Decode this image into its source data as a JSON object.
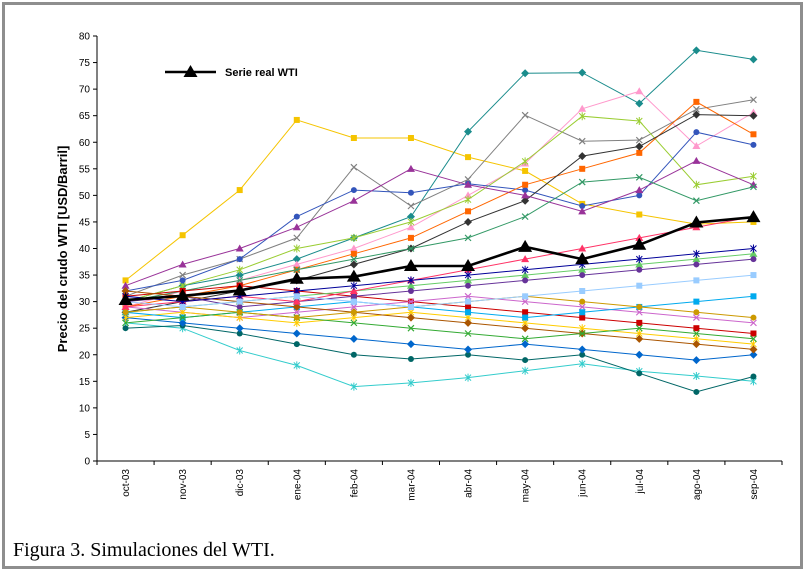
{
  "chart_data": {
    "type": "line",
    "title": "",
    "xlabel": "",
    "ylabel": "Precio del crudo WTI [USD/Barril]",
    "categories": [
      "oct-03",
      "nov-03",
      "dic-03",
      "ene-04",
      "feb-04",
      "mar-04",
      "abr-04",
      "may-04",
      "jun-04",
      "jul-04",
      "ago-04",
      "sep-04"
    ],
    "ylim": [
      0,
      80
    ],
    "yticks": [
      0,
      5,
      10,
      15,
      20,
      25,
      30,
      35,
      40,
      45,
      50,
      55,
      60,
      65,
      70,
      75,
      80
    ],
    "grid": false,
    "legend": "top-left",
    "series": [
      {
        "name": "Serie real WTI",
        "color": "#000000",
        "values": [
          30.3,
          31.1,
          32.1,
          34.3,
          34.7,
          36.7,
          36.7,
          40.3,
          38.0,
          40.7,
          44.9,
          45.9
        ]
      }
    ],
    "simulations": [
      {
        "color": "#f5c400",
        "values": [
          34.0,
          42.5,
          51.0,
          64.2,
          60.8,
          60.8,
          57.2,
          54.6,
          48.4,
          46.4,
          44.6,
          45.0
        ]
      },
      {
        "color": "#1a8c8c",
        "values": [
          30.0,
          33.0,
          35.0,
          38.0,
          42.0,
          46.0,
          62.0,
          73.0,
          73.1,
          67.3,
          77.3,
          75.6
        ]
      },
      {
        "color": "#ff99cc",
        "values": [
          29.0,
          32.0,
          34.0,
          37.0,
          40.0,
          44.0,
          50.0,
          56.0,
          66.3,
          69.6,
          59.3,
          65.6
        ]
      },
      {
        "color": "#808080",
        "values": [
          31.0,
          35.0,
          38.0,
          42.0,
          55.3,
          48.0,
          53.0,
          65.1,
          60.2,
          60.4,
          66.2,
          68.0
        ]
      },
      {
        "color": "#9acd32",
        "values": [
          30.0,
          33.0,
          36.0,
          40.0,
          42.0,
          45.0,
          49.2,
          56.4,
          64.9,
          64.0,
          52.0,
          53.6
        ]
      },
      {
        "color": "#3355bb",
        "values": [
          32.0,
          34.0,
          38.0,
          46.0,
          51.0,
          50.5,
          52.2,
          51.0,
          48.0,
          50.0,
          61.9,
          59.5
        ]
      },
      {
        "color": "#ff6600",
        "values": [
          29.0,
          31.0,
          33.0,
          36.0,
          39.0,
          42.0,
          47.0,
          52.0,
          55.0,
          58.0,
          67.6,
          61.5
        ]
      },
      {
        "color": "#333333",
        "values": [
          28.0,
          30.0,
          32.0,
          34.0,
          37.0,
          40.0,
          45.0,
          49.0,
          57.4,
          59.2,
          65.2,
          65.0
        ]
      },
      {
        "color": "#993399",
        "values": [
          33.0,
          37.0,
          40.0,
          44.0,
          49.0,
          55.0,
          52.0,
          50.0,
          47.0,
          51.0,
          56.5,
          52.0
        ]
      },
      {
        "color": "#339966",
        "values": [
          30.0,
          32.0,
          34.0,
          36.0,
          38.0,
          40.0,
          42.0,
          46.0,
          52.5,
          53.4,
          49.0,
          51.6
        ]
      },
      {
        "color": "#33cccc",
        "values": [
          26.0,
          25.0,
          20.8,
          18.0,
          14.0,
          14.7,
          15.7,
          17.0,
          18.3,
          16.9,
          16.0,
          15.0
        ]
      },
      {
        "color": "#006666",
        "values": [
          25.0,
          25.5,
          24.0,
          22.0,
          20.0,
          19.2,
          20.0,
          19.0,
          20.0,
          16.5,
          13.0,
          15.9
        ]
      },
      {
        "color": "#cc0000",
        "values": [
          31.0,
          32.0,
          33.0,
          32.0,
          31.0,
          30.0,
          29.0,
          28.0,
          27.0,
          26.0,
          25.0,
          24.0
        ]
      },
      {
        "color": "#0066cc",
        "values": [
          27.0,
          26.0,
          25.0,
          24.0,
          23.0,
          22.0,
          21.0,
          22.0,
          21.0,
          20.0,
          19.0,
          20.0
        ]
      },
      {
        "color": "#66cc66",
        "values": [
          28.0,
          29.0,
          30.0,
          31.0,
          32.0,
          33.0,
          34.0,
          35.0,
          36.0,
          37.0,
          38.0,
          39.0
        ]
      },
      {
        "color": "#cc66cc",
        "values": [
          29.0,
          28.0,
          27.0,
          28.0,
          29.0,
          30.0,
          31.0,
          30.0,
          29.0,
          28.0,
          27.0,
          26.0
        ]
      },
      {
        "color": "#ffcc00",
        "values": [
          27.0,
          28.0,
          27.0,
          26.0,
          27.0,
          28.0,
          27.0,
          26.0,
          25.0,
          24.0,
          23.0,
          22.0
        ]
      },
      {
        "color": "#663399",
        "values": [
          30.0,
          31.0,
          29.0,
          30.0,
          31.0,
          32.0,
          33.0,
          34.0,
          35.0,
          36.0,
          37.0,
          38.0
        ]
      },
      {
        "color": "#00aaee",
        "values": [
          28.0,
          27.0,
          28.0,
          29.0,
          30.0,
          29.0,
          28.0,
          27.0,
          28.0,
          29.0,
          30.0,
          31.0
        ]
      },
      {
        "color": "#aa5500",
        "values": [
          32.0,
          31.0,
          30.0,
          29.0,
          28.0,
          27.0,
          26.0,
          25.0,
          24.0,
          23.0,
          22.0,
          21.0
        ]
      },
      {
        "color": "#ff3366",
        "values": [
          29.0,
          30.0,
          31.0,
          30.0,
          32.0,
          34.0,
          36.0,
          38.0,
          40.0,
          42.0,
          44.0,
          46.0
        ]
      },
      {
        "color": "#33aa33",
        "values": [
          26.0,
          27.0,
          28.0,
          27.0,
          26.0,
          25.0,
          24.0,
          23.0,
          24.0,
          25.0,
          24.0,
          23.0
        ]
      },
      {
        "color": "#000099",
        "values": [
          31.0,
          30.0,
          31.0,
          32.0,
          33.0,
          34.0,
          35.0,
          36.0,
          37.0,
          38.0,
          39.0,
          40.0
        ]
      },
      {
        "color": "#cc9900",
        "values": [
          28.0,
          29.0,
          28.0,
          27.0,
          28.0,
          29.0,
          30.0,
          31.0,
          30.0,
          29.0,
          28.0,
          27.0
        ]
      },
      {
        "color": "#99ccff",
        "values": [
          30.0,
          29.0,
          30.0,
          31.0,
          30.0,
          29.0,
          30.0,
          31.0,
          32.0,
          33.0,
          34.0,
          35.0
        ]
      }
    ]
  },
  "caption": "Figura 3. Simulaciones del WTI."
}
